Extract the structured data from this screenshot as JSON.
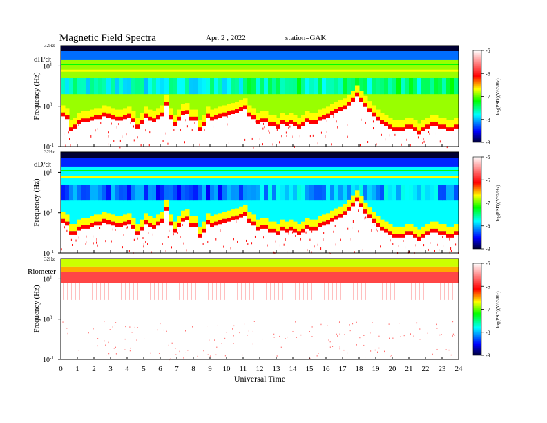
{
  "header": {
    "title": "Magnetic  Field  Spectra",
    "date": "Apr. 2  , 2022",
    "station": "station=GAK"
  },
  "chart_data": [
    {
      "type": "heatmap",
      "panel_label": "dH/dt",
      "ylabel": "Frequency  (Hz)",
      "top_label": "32Hz",
      "yticks": [
        {
          "base": "10",
          "exp": "1",
          "value": 10
        },
        {
          "base": "10",
          "exp": "0",
          "value": 1
        },
        {
          "base": "10",
          "exp": "-1",
          "value": 0.1
        }
      ],
      "ylim": [
        0.1,
        32
      ],
      "yscale": "log",
      "colorbar": {
        "label": "log(PSD)(V^2/Hz)",
        "min": -9,
        "max": -5,
        "ticks": [
          "-5",
          "-6",
          "-7",
          "-8",
          "-9"
        ]
      },
      "cutoff_hz": [
        0.7,
        0.6,
        0.3,
        0.35,
        0.45,
        0.5,
        0.5,
        0.55,
        0.6,
        0.6,
        0.7,
        0.65,
        0.6,
        0.55,
        0.55,
        0.6,
        0.65,
        0.5,
        0.35,
        0.45,
        0.65,
        0.55,
        0.5,
        0.6,
        0.7,
        1.3,
        0.6,
        0.4,
        0.55,
        0.75,
        0.8,
        0.55,
        0.55,
        0.3,
        0.4,
        0.65,
        0.55,
        0.6,
        0.65,
        0.7,
        0.75,
        0.8,
        0.85,
        0.95,
        1.05,
        0.7,
        0.6,
        0.45,
        0.5,
        0.5,
        0.4,
        0.4,
        0.35,
        0.45,
        0.4,
        0.45,
        0.4,
        0.35,
        0.4,
        0.5,
        0.45,
        0.45,
        0.55,
        0.6,
        0.65,
        0.75,
        0.85,
        0.95,
        1.05,
        1.3,
        1.6,
        2.2,
        1.6,
        1.2,
        0.9,
        0.7,
        0.55,
        0.45,
        0.4,
        0.35,
        0.3,
        0.3,
        0.3,
        0.35,
        0.35,
        0.3,
        0.25,
        0.3,
        0.35,
        0.4,
        0.4,
        0.35,
        0.35,
        0.3,
        0.3,
        0.35
      ],
      "bg_level": -6.9,
      "upper_level": -8.2
    },
    {
      "type": "heatmap",
      "panel_label": "dD/dt",
      "ylabel": "Frequency  (Hz)",
      "top_label": "32Hz",
      "yticks": [
        {
          "base": "10",
          "exp": "1",
          "value": 10
        },
        {
          "base": "10",
          "exp": "0",
          "value": 1
        },
        {
          "base": "10",
          "exp": "-1",
          "value": 0.1
        }
      ],
      "ylim": [
        0.1,
        32
      ],
      "yscale": "log",
      "colorbar": {
        "label": "log(PSD)(V^2/Hz)",
        "min": -9,
        "max": -5,
        "ticks": [
          "-5",
          "-6",
          "-7",
          "-8",
          "-9"
        ]
      },
      "cutoff_hz": [
        0.7,
        0.6,
        0.35,
        0.35,
        0.45,
        0.5,
        0.5,
        0.55,
        0.6,
        0.6,
        0.7,
        0.65,
        0.6,
        0.55,
        0.55,
        0.6,
        0.65,
        0.5,
        0.35,
        0.45,
        0.65,
        0.55,
        0.5,
        0.6,
        0.7,
        1.4,
        0.6,
        0.4,
        0.55,
        0.75,
        0.8,
        0.55,
        0.55,
        0.3,
        0.4,
        0.65,
        0.55,
        0.6,
        0.65,
        0.7,
        0.75,
        0.8,
        0.85,
        0.95,
        1.05,
        0.7,
        0.6,
        0.45,
        0.5,
        0.5,
        0.4,
        0.4,
        0.35,
        0.45,
        0.4,
        0.45,
        0.4,
        0.35,
        0.4,
        0.5,
        0.45,
        0.45,
        0.55,
        0.6,
        0.65,
        0.75,
        0.85,
        0.95,
        1.1,
        1.4,
        1.8,
        2.4,
        1.7,
        1.2,
        0.9,
        0.7,
        0.55,
        0.45,
        0.4,
        0.35,
        0.3,
        0.3,
        0.3,
        0.35,
        0.35,
        0.3,
        0.25,
        0.3,
        0.35,
        0.4,
        0.4,
        0.35,
        0.35,
        0.3,
        0.3,
        0.35
      ],
      "bg_level": -7.8,
      "upper_level": -8.4
    },
    {
      "type": "heatmap",
      "panel_label": "Riometer",
      "ylabel": "Frequency  (Hz)",
      "top_label": "32Hz",
      "yticks": [
        {
          "base": "10",
          "exp": "1",
          "value": 10
        },
        {
          "base": "10",
          "exp": "0",
          "value": 1
        },
        {
          "base": "10",
          "exp": "-1",
          "value": 0.1
        }
      ],
      "ylim": [
        0.1,
        32
      ],
      "yscale": "log",
      "colorbar": {
        "label": "log(PSD)(V^2/Hz)",
        "min": -9,
        "max": -5,
        "ticks": [
          "-5",
          "-6",
          "-7",
          "-8",
          "-9"
        ]
      },
      "bands": [
        {
          "from_hz": 20,
          "to_hz": 32,
          "level": -6.8
        },
        {
          "from_hz": 15,
          "to_hz": 20,
          "level": -6.5
        },
        {
          "from_hz": 8,
          "to_hz": 15,
          "level": -5.8
        },
        {
          "from_hz": 0.1,
          "to_hz": 8,
          "level": -5.0
        }
      ]
    }
  ],
  "xaxis": {
    "label": "Universal  Time",
    "xlim": [
      0,
      24
    ],
    "ticks": [
      "0",
      "1",
      "2",
      "3",
      "4",
      "5",
      "6",
      "7",
      "8",
      "9",
      "10",
      "11",
      "12",
      "13",
      "14",
      "15",
      "16",
      "17",
      "18",
      "19",
      "20",
      "21",
      "22",
      "23",
      "24"
    ]
  },
  "colors": {
    "white": "#ffffff",
    "red": "#ff0000",
    "yellow": "#ffff00",
    "green": "#00ff00",
    "cyan": "#00ffff",
    "blue": "#0000ff",
    "navy": "#000033"
  }
}
